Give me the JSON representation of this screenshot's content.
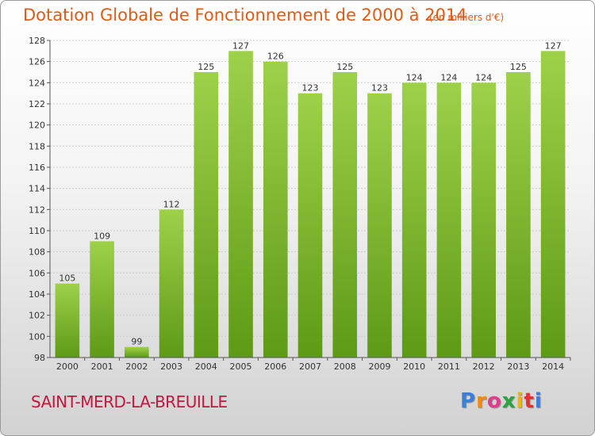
{
  "header": {
    "title": "Dotation Globale de Fonctionnement de 2000 à 2014",
    "subtitle": "(en milliers d'€)"
  },
  "footer": {
    "commune": "SAINT-MERD-LA-BREUILLE",
    "logo_letters": [
      "P",
      "r",
      "o",
      "x",
      "i",
      "t",
      "i"
    ],
    "logo_colors": [
      "#3b7fd9",
      "#f08a12",
      "#e43b8c",
      "#2aa33c",
      "#e8b80a",
      "#e0322e",
      "#3b7fd9"
    ]
  },
  "colors": {
    "bar_light": "#9ed14a",
    "bar_dark": "#5e9a16",
    "text": "#e05a16",
    "commune": "#c5163f"
  },
  "chart_data": {
    "type": "bar",
    "categories": [
      "2000",
      "2001",
      "2002",
      "2003",
      "2004",
      "2005",
      "2006",
      "2007",
      "2008",
      "2009",
      "2010",
      "2011",
      "2012",
      "2013",
      "2014"
    ],
    "values": [
      105,
      109,
      99,
      112,
      125,
      127,
      126,
      123,
      125,
      123,
      124,
      124,
      124,
      125,
      127
    ],
    "data_labels": [
      "105",
      "109",
      "99",
      "112",
      "125",
      "127",
      "126",
      "123",
      "125",
      "123",
      "124",
      "124",
      "124",
      "125",
      "127"
    ],
    "title": "Dotation Globale de Fonctionnement de 2000 à 2014",
    "subtitle": "(en milliers d'€)",
    "xlabel": "",
    "ylabel": "",
    "ylim": [
      98,
      128
    ],
    "yticks": [
      98,
      100,
      102,
      104,
      106,
      108,
      110,
      112,
      114,
      116,
      118,
      120,
      122,
      124,
      126,
      128
    ],
    "grid": true,
    "legend": "none"
  }
}
